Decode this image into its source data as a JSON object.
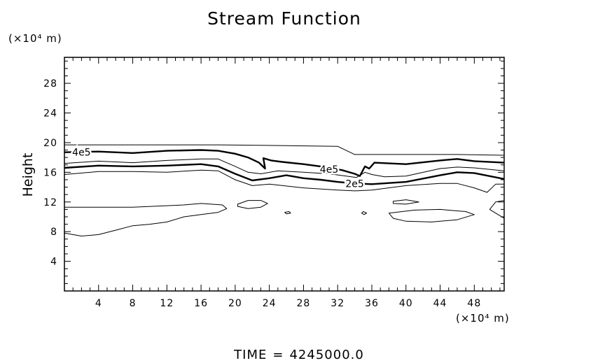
{
  "chart_data": {
    "type": "contour",
    "title": "Stream Function",
    "ylabel": "Height",
    "xlabel": "",
    "y_unit_label": "(×10⁴ m)",
    "x_unit_label": "(×10⁴ m)",
    "xlim": [
      0,
      51.5
    ],
    "ylim": [
      0,
      31.5
    ],
    "x_ticks": [
      4,
      8,
      12,
      16,
      20,
      24,
      28,
      32,
      36,
      40,
      44,
      48
    ],
    "y_ticks": [
      4,
      8,
      12,
      16,
      20,
      24,
      28
    ],
    "grid": false,
    "contours": [
      {
        "name": "contour-top-thin",
        "label": "",
        "bold": false,
        "points": [
          [
            0,
            19.7
          ],
          [
            18,
            19.7
          ],
          [
            26,
            19.6
          ],
          [
            32,
            19.5
          ],
          [
            34,
            18.4
          ],
          [
            40,
            18.4
          ],
          [
            46,
            18.4
          ],
          [
            51.5,
            18.3
          ]
        ]
      },
      {
        "name": "contour-4e5",
        "label": "4e5",
        "bold": true,
        "labels": [
          {
            "text": "4e5",
            "x": 2,
            "y": 18.7
          },
          {
            "text": "4e5",
            "x": 31,
            "y": 16.4
          }
        ],
        "points": [
          [
            0,
            18.7
          ],
          [
            4,
            18.8
          ],
          [
            8,
            18.6
          ],
          [
            12,
            18.9
          ],
          [
            16,
            19.0
          ],
          [
            18,
            18.9
          ],
          [
            20,
            18.5
          ],
          [
            21.5,
            18.0
          ],
          [
            22.8,
            17.3
          ],
          [
            23.5,
            16.5
          ],
          [
            23.3,
            17.9
          ],
          [
            24.2,
            17.6
          ],
          [
            25.5,
            17.4
          ],
          [
            28,
            17.1
          ],
          [
            30,
            16.8
          ],
          [
            32.5,
            16.3
          ],
          [
            34,
            15.8
          ],
          [
            34.6,
            15.5
          ],
          [
            35.2,
            16.8
          ],
          [
            35.7,
            16.5
          ],
          [
            36.3,
            17.3
          ],
          [
            40,
            17.1
          ],
          [
            44,
            17.6
          ],
          [
            46,
            17.8
          ],
          [
            48,
            17.5
          ],
          [
            51.5,
            17.3
          ]
        ]
      },
      {
        "name": "contour-mid-thin",
        "label": "",
        "bold": false,
        "points": [
          [
            0,
            17.2
          ],
          [
            4,
            17.5
          ],
          [
            8,
            17.3
          ],
          [
            12,
            17.6
          ],
          [
            16,
            17.8
          ],
          [
            18,
            17.8
          ],
          [
            20,
            16.8
          ],
          [
            21.5,
            16.0
          ],
          [
            23,
            15.8
          ],
          [
            25,
            16.2
          ],
          [
            28,
            16.0
          ],
          [
            31,
            15.8
          ],
          [
            33,
            15.5
          ],
          [
            34.2,
            15.3
          ],
          [
            35.2,
            16.0
          ],
          [
            36,
            15.7
          ],
          [
            37.5,
            15.4
          ],
          [
            40,
            15.5
          ],
          [
            44,
            16.5
          ],
          [
            46,
            16.7
          ],
          [
            48,
            16.6
          ],
          [
            51.5,
            16.2
          ]
        ]
      },
      {
        "name": "contour-2e5",
        "label": "2e5",
        "bold": true,
        "labels": [
          {
            "text": "2e5",
            "x": 34,
            "y": 14.5
          }
        ],
        "points": [
          [
            0,
            16.6
          ],
          [
            4,
            16.9
          ],
          [
            8,
            16.8
          ],
          [
            12,
            16.9
          ],
          [
            16,
            17.1
          ],
          [
            18,
            16.8
          ],
          [
            20,
            15.8
          ],
          [
            22,
            14.9
          ],
          [
            24,
            15.2
          ],
          [
            26,
            15.6
          ],
          [
            28,
            15.2
          ],
          [
            30,
            15.0
          ],
          [
            32,
            14.7
          ],
          [
            34,
            14.5
          ],
          [
            36,
            14.4
          ],
          [
            40,
            14.7
          ],
          [
            44,
            15.6
          ],
          [
            46,
            16.0
          ],
          [
            48,
            15.9
          ],
          [
            51.5,
            15.1
          ]
        ]
      },
      {
        "name": "contour-low-thin",
        "label": "",
        "bold": false,
        "points": [
          [
            0,
            15.7
          ],
          [
            4,
            16.1
          ],
          [
            8,
            16.1
          ],
          [
            12,
            16.0
          ],
          [
            16,
            16.3
          ],
          [
            18,
            16.2
          ],
          [
            20,
            15.0
          ],
          [
            22,
            14.2
          ],
          [
            24,
            14.4
          ],
          [
            28,
            13.9
          ],
          [
            32,
            13.6
          ],
          [
            34,
            13.5
          ],
          [
            36,
            13.6
          ],
          [
            40,
            14.2
          ],
          [
            44,
            14.5
          ],
          [
            46,
            14.5
          ],
          [
            48,
            13.9
          ],
          [
            49.5,
            13.3
          ],
          [
            50.5,
            14.4
          ],
          [
            51.5,
            14.4
          ]
        ]
      },
      {
        "name": "contour-lower-boundary",
        "label": "",
        "bold": false,
        "points": [
          [
            0,
            11.3
          ],
          [
            8,
            11.3
          ],
          [
            14,
            11.6
          ],
          [
            16,
            11.8
          ],
          [
            18.5,
            11.6
          ],
          [
            19,
            11.1
          ],
          [
            18,
            10.6
          ],
          [
            16,
            10.3
          ],
          [
            14,
            10.0
          ],
          [
            12,
            9.3
          ],
          [
            10,
            9.0
          ],
          [
            8,
            8.8
          ],
          [
            6,
            8.2
          ],
          [
            4,
            7.6
          ],
          [
            2,
            7.4
          ],
          [
            0,
            7.8
          ]
        ]
      },
      {
        "name": "contour-blob-a",
        "label": "",
        "bold": false,
        "closed": true,
        "points": [
          [
            20.3,
            11.7
          ],
          [
            21.5,
            12.2
          ],
          [
            23,
            12.2
          ],
          [
            23.8,
            11.8
          ],
          [
            23,
            11.3
          ],
          [
            21.5,
            11.1
          ],
          [
            20.3,
            11.4
          ]
        ]
      },
      {
        "name": "contour-blob-b",
        "label": "",
        "bold": false,
        "closed": true,
        "points": [
          [
            38.5,
            12.1
          ],
          [
            40,
            12.3
          ],
          [
            41.5,
            12.0
          ],
          [
            40,
            11.7
          ],
          [
            38.5,
            11.8
          ]
        ]
      },
      {
        "name": "contour-blob-c",
        "label": "",
        "bold": false,
        "closed": true,
        "points": [
          [
            38,
            10.5
          ],
          [
            41,
            10.9
          ],
          [
            44,
            11.0
          ],
          [
            47,
            10.7
          ],
          [
            48,
            10.3
          ],
          [
            46,
            9.6
          ],
          [
            43,
            9.3
          ],
          [
            40,
            9.4
          ],
          [
            38.5,
            9.8
          ]
        ]
      },
      {
        "name": "contour-blob-d",
        "label": "",
        "bold": false,
        "closed": true,
        "points": [
          [
            25.8,
            10.6
          ],
          [
            26.3,
            10.7
          ],
          [
            26.5,
            10.5
          ],
          [
            26,
            10.4
          ]
        ]
      },
      {
        "name": "contour-blob-e",
        "label": "",
        "bold": false,
        "closed": true,
        "points": [
          [
            35,
            10.7
          ],
          [
            35.4,
            10.5
          ],
          [
            35.1,
            10.3
          ],
          [
            34.8,
            10.5
          ]
        ]
      },
      {
        "name": "contour-right-edge",
        "label": "",
        "bold": false,
        "points": [
          [
            51.5,
            12.2
          ],
          [
            50.5,
            12.0
          ],
          [
            49.8,
            11.0
          ],
          [
            50.5,
            10.5
          ],
          [
            51.5,
            9.8
          ]
        ]
      }
    ]
  },
  "footer": {
    "time_label": "TIME",
    "equals": "=",
    "time_value": "4245000.0"
  },
  "colors": {
    "line": "#000000",
    "background": "#ffffff"
  }
}
